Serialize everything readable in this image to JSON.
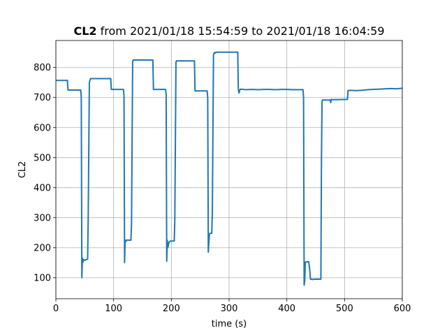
{
  "chart_data": {
    "type": "line",
    "title": {
      "variable": "CL2",
      "from_text": " from ",
      "start": "2021/01/18 15:54:59",
      "to_text": " to ",
      "end": "2021/01/18 16:04:59"
    },
    "xlabel": "time (s)",
    "ylabel": "CL2",
    "xlim": [
      0,
      600
    ],
    "ylim": [
      30,
      890
    ],
    "xticks": [
      0,
      100,
      200,
      300,
      400,
      500,
      600
    ],
    "yticks": [
      100,
      200,
      300,
      400,
      500,
      600,
      700,
      800
    ],
    "grid": true,
    "colors": {
      "line": "#1f77b4",
      "grid": "#b0b0b0"
    },
    "series": [
      {
        "name": "",
        "x": [
          0,
          20,
          21,
          43,
          44,
          45,
          46,
          47,
          48,
          50,
          55,
          56,
          58,
          59,
          60,
          95,
          96,
          117,
          118,
          119,
          120,
          121,
          122,
          130,
          131,
          133,
          134,
          168,
          169,
          190,
          191,
          192,
          193,
          194,
          195,
          196,
          197,
          198,
          205,
          206,
          208,
          209,
          240,
          241,
          262,
          263,
          264,
          265,
          266,
          267,
          270,
          271,
          273,
          274,
          275,
          276,
          278,
          315,
          316,
          317,
          319,
          320,
          330,
          340,
          350,
          360,
          370,
          380,
          390,
          400,
          410,
          428,
          429,
          430,
          431,
          432,
          433,
          434,
          438,
          440,
          441,
          443,
          444,
          445,
          446,
          455,
          456,
          459,
          460,
          461,
          462,
          475,
          476,
          477,
          478,
          490,
          505,
          506,
          510,
          520,
          530,
          540,
          550,
          560,
          570,
          580,
          590,
          600
        ],
        "y": [
          757,
          757,
          725,
          725,
          700,
          100,
          165,
          152,
          160,
          158,
          162,
          300,
          750,
          757,
          763,
          763,
          727,
          727,
          705,
          150,
          225,
          220,
          225,
          225,
          280,
          820,
          825,
          825,
          727,
          727,
          710,
          155,
          225,
          200,
          210,
          218,
          220,
          222,
          222,
          290,
          818,
          822,
          822,
          722,
          722,
          700,
          185,
          220,
          245,
          248,
          248,
          320,
          840,
          848,
          850,
          848,
          851,
          851,
          728,
          715,
          727,
          728,
          726,
          727,
          726,
          727,
          727,
          726,
          727,
          727,
          726,
          726,
          700,
          75,
          90,
          152,
          152,
          153,
          153,
          120,
          95,
          95,
          94,
          94,
          95,
          95,
          95,
          95,
          500,
          688,
          692,
          692,
          683,
          694,
          693,
          693,
          694,
          723,
          724,
          723,
          724,
          726,
          727,
          728,
          729,
          730,
          729,
          731
        ]
      }
    ]
  }
}
